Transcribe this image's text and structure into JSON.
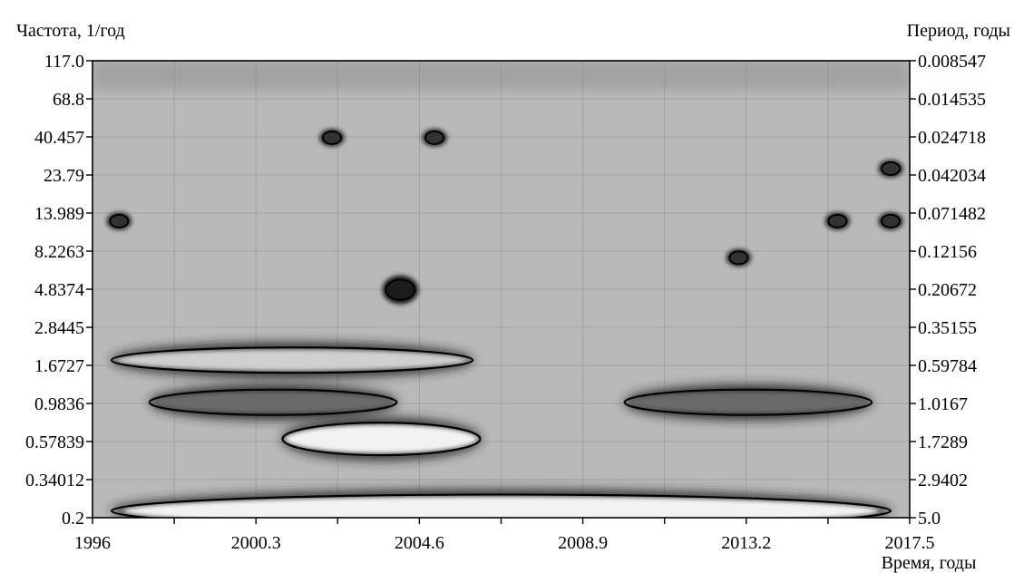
{
  "chart_data": {
    "type": "heatmap",
    "title": "",
    "left_axis_label": "Частота, 1/год",
    "right_axis_label": "Период, годы",
    "xlabel": "Время, годы",
    "x_ticks": [
      "1996",
      "2000.3",
      "2004.6",
      "2008.9",
      "2013.2",
      "2017.5"
    ],
    "xlim": [
      1996,
      2017.5
    ],
    "left_ticks": [
      "117.0",
      "68.8",
      "40.457",
      "23.79",
      "13.989",
      "8.2263",
      "4.8374",
      "2.8445",
      "1.6727",
      "0.9836",
      "0.57839",
      "0.34012",
      "0.2"
    ],
    "right_ticks": [
      "0.008547",
      "0.014535",
      "0.024718",
      "0.042034",
      "0.071482",
      "0.12156",
      "0.20672",
      "0.35155",
      "0.59784",
      "1.0167",
      "1.7289",
      "2.9402",
      "5.0"
    ],
    "frequency_scale": "log",
    "frequency_range": [
      0.2,
      117.0
    ],
    "period_range": [
      0.008547,
      5.0
    ],
    "colormap": "grayscale",
    "grid": true,
    "features": [
      {
        "kind": "band",
        "t": [
          1996.5,
          2017.0
        ],
        "f": 0.22,
        "intensity": "high"
      },
      {
        "kind": "band",
        "t": [
          2001.0,
          2006.2
        ],
        "f": 0.6,
        "intensity": "high"
      },
      {
        "kind": "band",
        "t": [
          1997.5,
          2004.0
        ],
        "f": 1.0,
        "intensity": "medium"
      },
      {
        "kind": "band",
        "t": [
          2010.0,
          2016.5
        ],
        "f": 1.0,
        "intensity": "medium"
      },
      {
        "kind": "band",
        "t": [
          1996.5,
          2006.0
        ],
        "f": 1.8,
        "intensity": "low"
      },
      {
        "kind": "spot",
        "t": 2004.1,
        "f": 4.8,
        "intensity": "high"
      },
      {
        "kind": "spot",
        "t": 2002.3,
        "f": 40.0,
        "intensity": "medium"
      },
      {
        "kind": "spot",
        "t": 2005.0,
        "f": 40.0,
        "intensity": "medium"
      },
      {
        "kind": "spot",
        "t": 1996.7,
        "f": 12.5,
        "intensity": "medium"
      },
      {
        "kind": "spot",
        "t": 2015.6,
        "f": 12.5,
        "intensity": "medium"
      },
      {
        "kind": "spot",
        "t": 2017.0,
        "f": 12.5,
        "intensity": "medium"
      },
      {
        "kind": "spot",
        "t": 2017.0,
        "f": 26.0,
        "intensity": "medium"
      },
      {
        "kind": "spot",
        "t": 2013.0,
        "f": 7.5,
        "intensity": "medium"
      }
    ]
  }
}
